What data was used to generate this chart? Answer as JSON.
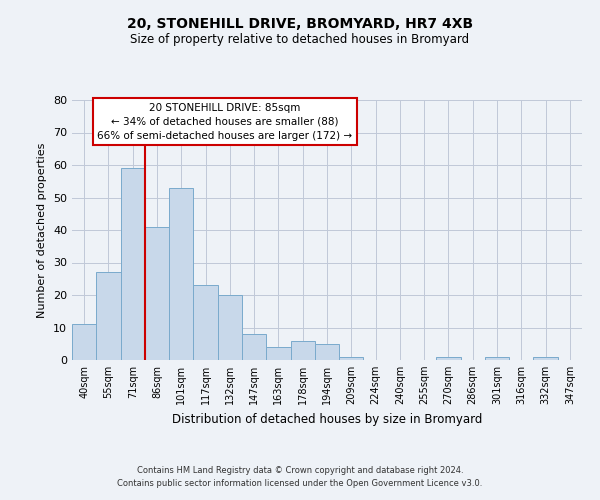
{
  "title": "20, STONEHILL DRIVE, BROMYARD, HR7 4XB",
  "subtitle": "Size of property relative to detached houses in Bromyard",
  "xlabel": "Distribution of detached houses by size in Bromyard",
  "ylabel": "Number of detached properties",
  "bin_labels": [
    "40sqm",
    "55sqm",
    "71sqm",
    "86sqm",
    "101sqm",
    "117sqm",
    "132sqm",
    "147sqm",
    "163sqm",
    "178sqm",
    "194sqm",
    "209sqm",
    "224sqm",
    "240sqm",
    "255sqm",
    "270sqm",
    "286sqm",
    "301sqm",
    "316sqm",
    "332sqm",
    "347sqm"
  ],
  "bar_heights": [
    11,
    27,
    59,
    41,
    53,
    23,
    20,
    8,
    4,
    6,
    5,
    1,
    0,
    0,
    0,
    1,
    0,
    1,
    0,
    1,
    0
  ],
  "bar_color": "#c8d8ea",
  "bar_edge_color": "#7aaacc",
  "vline_color": "#cc0000",
  "ylim": [
    0,
    80
  ],
  "yticks": [
    0,
    10,
    20,
    30,
    40,
    50,
    60,
    70,
    80
  ],
  "annotation_title": "20 STONEHILL DRIVE: 85sqm",
  "annotation_line1": "← 34% of detached houses are smaller (88)",
  "annotation_line2": "66% of semi-detached houses are larger (172) →",
  "footer_line1": "Contains HM Land Registry data © Crown copyright and database right 2024.",
  "footer_line2": "Contains public sector information licensed under the Open Government Licence v3.0.",
  "background_color": "#eef2f7",
  "plot_background": "#eef2f7",
  "grid_color": "#c0c8d8"
}
